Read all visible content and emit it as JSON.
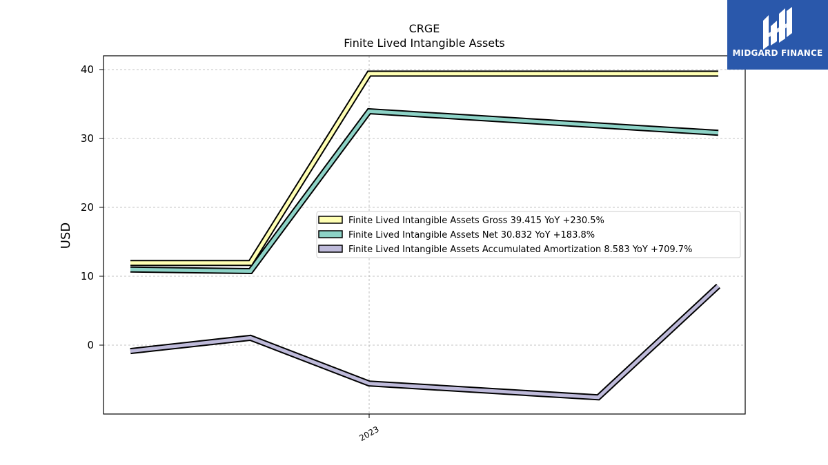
{
  "chart_data": {
    "type": "line",
    "title": "CRGE",
    "subtitle": "Finite Lived Intangible Assets",
    "xlabel": "",
    "ylabel": "USD",
    "x_tick_labels": [
      "2023"
    ],
    "y_ticks": [
      0,
      10,
      20,
      30,
      40
    ],
    "ylim": [
      -10,
      42
    ],
    "grid": true,
    "legend_position": "right",
    "series": [
      {
        "name": "Finite Lived Intangible Assets Gross  39.415 YoY +230.5%",
        "color": "#ffffb3",
        "values": [
          11.93,
          11.93,
          39.415,
          null,
          39.415
        ]
      },
      {
        "name": "Finite Lived Intangible Assets Net  30.832 YoY +183.8%",
        "color": "#8dd3c7",
        "values": [
          10.97,
          10.75,
          33.95,
          null,
          30.832
        ]
      },
      {
        "name": "Finite Lived Intangible Assets Accumulated Amortization  8.583 YoY +709.7%",
        "color": "#bebada",
        "values": [
          -0.86,
          1.06,
          -5.57,
          -7.58,
          8.583
        ]
      }
    ]
  },
  "brand": {
    "name": "MIDGARD FINANCE",
    "background": "#2a58ab"
  }
}
